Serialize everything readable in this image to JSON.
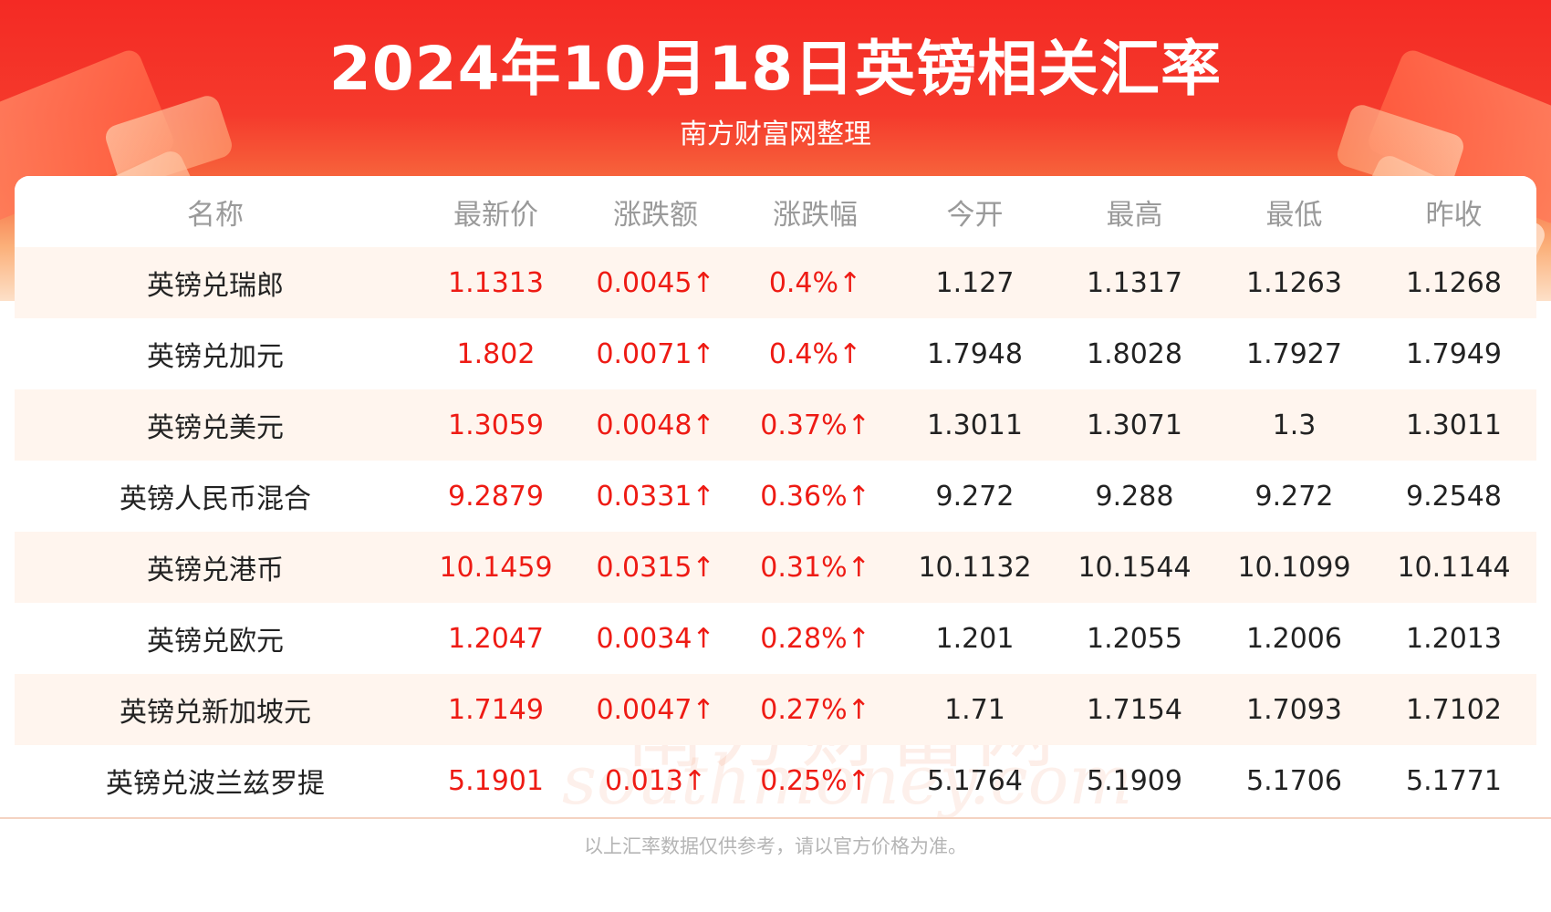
{
  "header": {
    "title": "2024年10月18日英镑相关汇率",
    "subtitle": "南方财富网整理"
  },
  "table": {
    "columns": [
      "名称",
      "最新价",
      "涨跌额",
      "涨跌幅",
      "今开",
      "最高",
      "最低",
      "昨收"
    ],
    "rows": [
      [
        "英镑兑瑞郎",
        "1.1313",
        "0.0045↑",
        "0.4%↑",
        "1.127",
        "1.1317",
        "1.1263",
        "1.1268"
      ],
      [
        "英镑兑加元",
        "1.802",
        "0.0071↑",
        "0.4%↑",
        "1.7948",
        "1.8028",
        "1.7927",
        "1.7949"
      ],
      [
        "英镑兑美元",
        "1.3059",
        "0.0048↑",
        "0.37%↑",
        "1.3011",
        "1.3071",
        "1.3",
        "1.3011"
      ],
      [
        "英镑人民币混合",
        "9.2879",
        "0.0331↑",
        "0.36%↑",
        "9.272",
        "9.288",
        "9.272",
        "9.2548"
      ],
      [
        "英镑兑港币",
        "10.1459",
        "0.0315↑",
        "0.31%↑",
        "10.1132",
        "10.1544",
        "10.1099",
        "10.1144"
      ],
      [
        "英镑兑欧元",
        "1.2047",
        "0.0034↑",
        "0.28%↑",
        "1.201",
        "1.2055",
        "1.2006",
        "1.2013"
      ],
      [
        "英镑兑新加坡元",
        "1.7149",
        "0.0047↑",
        "0.27%↑",
        "1.71",
        "1.7154",
        "1.7093",
        "1.7102"
      ],
      [
        "英镑兑波兰兹罗提",
        "5.1901",
        "0.013↑",
        "0.25%↑",
        "5.1764",
        "5.1909",
        "5.1706",
        "5.1771"
      ]
    ]
  },
  "watermark": {
    "cn": "南方财富网",
    "en": "southmoney.com"
  },
  "footer": {
    "note": "以上汇率数据仅供参考，请以官方价格为准。"
  },
  "colors": {
    "header_red": "#f42a24",
    "up_red": "#ee1b14",
    "row_shade": "#fff5ee",
    "header_text": "#9a9a9a"
  }
}
